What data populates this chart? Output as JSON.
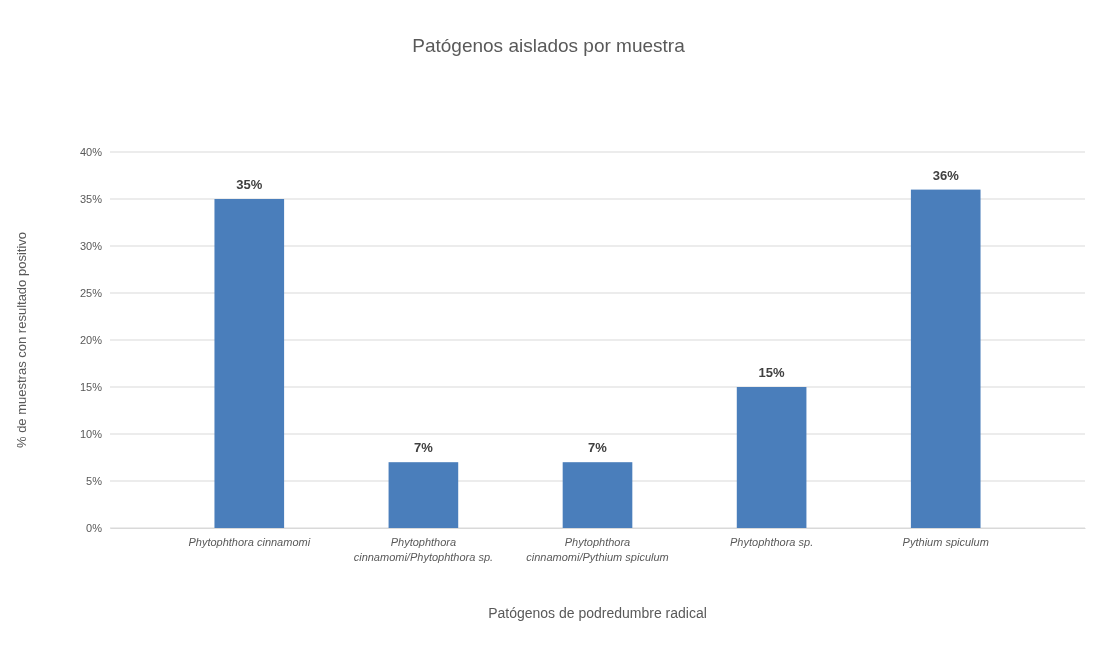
{
  "chart_data": {
    "type": "bar",
    "title": "Patógenos aislados por muestra",
    "xlabel": "Patógenos de podredumbre radical",
    "ylabel": "% de muestras con resultado positivo",
    "categories": [
      "Phytophthora cinnamomi",
      "Phytophthora cinnamomi/Phytophthora sp.",
      "Phytophthora cinnamomi/Pythium spiculum",
      "Phytophthora sp.",
      "Pythium spiculum"
    ],
    "values": [
      35,
      7,
      7,
      15,
      36
    ],
    "value_labels": [
      "35%",
      "7%",
      "7%",
      "15%",
      "36%"
    ],
    "color": "#4a7ebb",
    "ylim": [
      0,
      40
    ],
    "yticks": [
      {
        "value": 0,
        "label": "0%"
      },
      {
        "value": 5,
        "label": "5%"
      },
      {
        "value": 10,
        "label": "10%"
      },
      {
        "value": 15,
        "label": "15%"
      },
      {
        "value": 20,
        "label": "20%"
      },
      {
        "value": 25,
        "label": "25%"
      },
      {
        "value": 30,
        "label": "30%"
      },
      {
        "value": 35,
        "label": "35%"
      },
      {
        "value": 40,
        "label": "40%"
      }
    ],
    "grid": "y"
  }
}
